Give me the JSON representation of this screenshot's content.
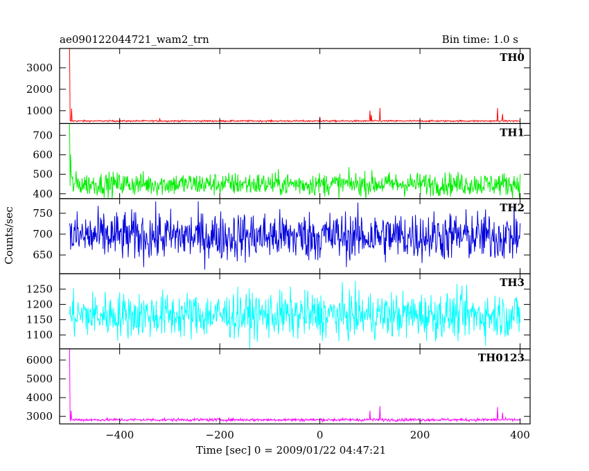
{
  "header": {
    "title": "ae090122044721_wam2_trn",
    "bin_time": "Bin time: 1.0 s"
  },
  "chart_data": {
    "type": "line",
    "title": "ae090122044721_wam2_trn",
    "xlabel": "Time [sec] 0 = 2009/01/22 04:47:21",
    "ylabel": "Counts/sec",
    "xlim": [
      -520,
      420
    ],
    "x_ticks": [
      -400,
      -200,
      0,
      200,
      400
    ],
    "x_tick_labels": [
      "−400",
      "−200",
      "0",
      "200",
      "400"
    ],
    "x_range": [
      -500,
      400
    ],
    "bin_time_s": 1.0,
    "grid": false,
    "panels": [
      {
        "name": "TH0",
        "color": "#ff0000",
        "ylim": [
          400,
          3900
        ],
        "y_ticks": [
          1000,
          2000,
          3000
        ],
        "baseline": 520,
        "noise": 18,
        "spikes": [
          [
            -500,
            3900
          ],
          [
            -496,
            1100
          ],
          [
            -320,
            650
          ],
          [
            0,
            720
          ],
          [
            100,
            1000
          ],
          [
            103,
            800
          ],
          [
            120,
            1130
          ],
          [
            355,
            1120
          ],
          [
            365,
            850
          ]
        ]
      },
      {
        "name": "TH1",
        "color": "#00ee00",
        "ylim": [
          375,
          760
        ],
        "y_ticks": [
          400,
          500,
          600,
          700
        ],
        "baseline": 450,
        "noise": 30,
        "spikes": [
          [
            -500,
            760
          ],
          [
            -498,
            600
          ],
          [
            -497,
            520
          ]
        ]
      },
      {
        "name": "TH2",
        "color": "#0000dd",
        "ylim": [
          605,
          785
        ],
        "y_ticks": [
          650,
          700,
          750
        ],
        "baseline": 695,
        "noise": 30,
        "clip": true,
        "spikes": []
      },
      {
        "name": "TH3",
        "color": "#00ffff",
        "ylim": [
          1055,
          1300
        ],
        "y_ticks": [
          1100,
          1150,
          1200,
          1250
        ],
        "baseline": 1165,
        "noise": 38,
        "clip": true,
        "spikes": []
      },
      {
        "name": "TH0123",
        "color": "#ff00ff",
        "ylim": [
          2600,
          6600
        ],
        "y_ticks": [
          3000,
          4000,
          5000,
          6000
        ],
        "baseline": 2820,
        "noise": 40,
        "spikes": [
          [
            -500,
            6600
          ],
          [
            -497,
            3300
          ],
          [
            100,
            3300
          ],
          [
            120,
            3550
          ],
          [
            355,
            3500
          ],
          [
            365,
            3200
          ]
        ]
      }
    ]
  }
}
